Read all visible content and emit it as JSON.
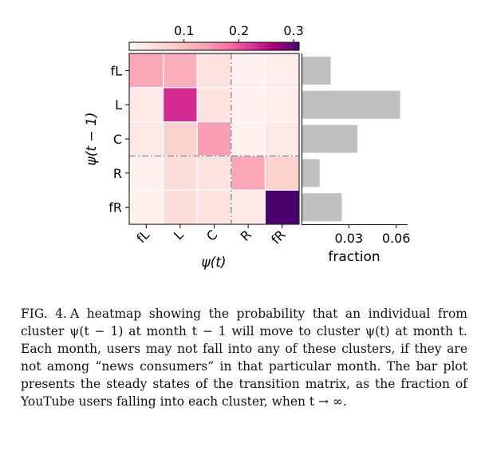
{
  "chart_data": [
    {
      "type": "heatmap",
      "x_categories": [
        "fL",
        "L",
        "C",
        "R",
        "fR"
      ],
      "y_categories": [
        "fL",
        "L",
        "C",
        "R",
        "fR"
      ],
      "xlabel": "ψ(t)",
      "ylabel": "ψ(t − 1)",
      "values": [
        [
          0.13,
          0.12,
          0.04,
          0.01,
          0.02
        ],
        [
          0.03,
          0.23,
          0.04,
          0.01,
          0.02
        ],
        [
          0.03,
          0.07,
          0.14,
          0.01,
          0.03
        ],
        [
          0.01,
          0.05,
          0.04,
          0.13,
          0.07
        ],
        [
          0.01,
          0.05,
          0.04,
          0.03,
          0.31
        ]
      ],
      "colorbar": {
        "range": [
          0,
          0.31
        ],
        "ticks": [
          0.1,
          0.2,
          0.3
        ],
        "tick_labels": [
          "0.1",
          "0.2",
          "0.3"
        ],
        "placement": "top",
        "colormap": "RdPu"
      },
      "separators": "dash-dot gray lines between C/R rows and columns"
    },
    {
      "type": "bar",
      "orientation": "horizontal",
      "categories": [
        "fL",
        "L",
        "C",
        "R",
        "fR"
      ],
      "values": [
        0.018,
        0.062,
        0.035,
        0.011,
        0.025
      ],
      "xlabel": "fraction",
      "xticks": [
        0.03,
        0.06
      ],
      "xtick_labels": [
        "0.03",
        "0.06"
      ],
      "xlim": [
        0,
        0.0665
      ],
      "bar_color": "#c0c0c0"
    }
  ],
  "caption": {
    "label": "FIG. 4.",
    "text": "A heatmap showing the probability that an individual from cluster ψ(t − 1) at month t − 1 will move to cluster ψ(t) at month t. Each month, users may not fall into any of these clusters, if they are not among “news consumers” in that particular month. The bar plot presents the steady states of the transition matrix, as the fraction of YouTube users falling into each cluster, when t → ∞."
  }
}
